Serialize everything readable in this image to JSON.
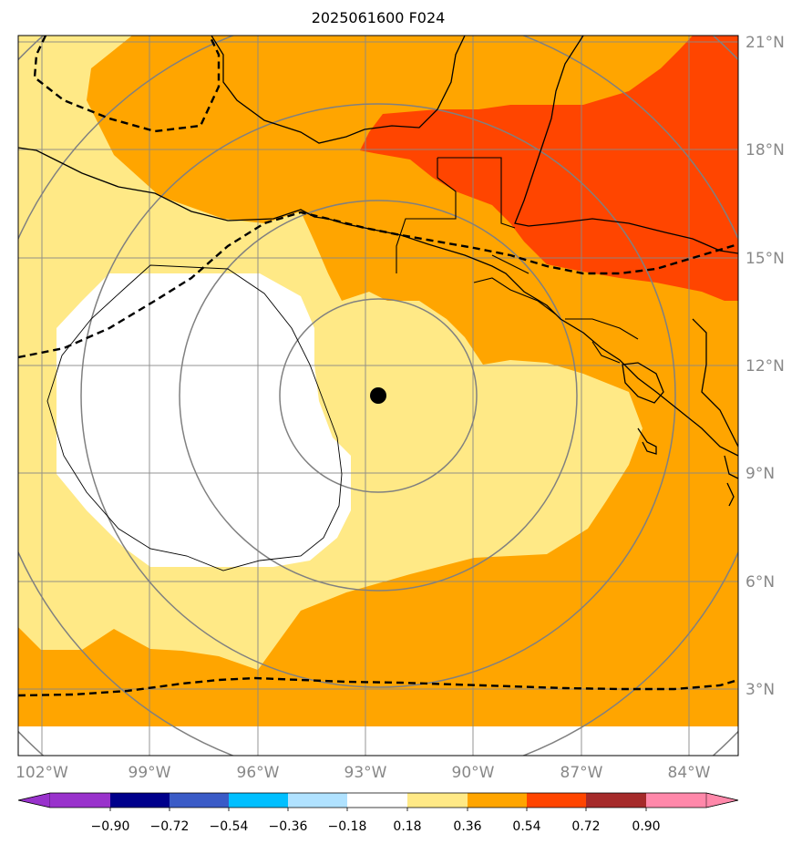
{
  "title": "2025061600 F024",
  "lat_labels": [
    "21°N",
    "18°N",
    "15°N",
    "12°N",
    "9°N",
    "6°N",
    "3°N"
  ],
  "lon_labels": [
    "102°W",
    "99°W",
    "96°W",
    "93°W",
    "90°W",
    "87°W",
    "84°W"
  ],
  "colorbar": {
    "ticks": [
      "−0.90",
      "−0.72",
      "−0.54",
      "−0.36",
      "−0.18",
      "0.18",
      "0.36",
      "0.54",
      "0.72",
      "0.90"
    ],
    "colors": [
      "#9932cc",
      "#00008b",
      "#3a5bc7",
      "#00bfff",
      "#b0e2ff",
      "#ffffff",
      "#ffe986",
      "#ffa500",
      "#ff4500",
      "#a52a2a",
      "#ff88aa"
    ]
  },
  "fill_colors": {
    "level_018_036": "#ffe986",
    "level_036_054": "#ffa500",
    "level_054_072": "#ff4500",
    "below_018": "#ffffff"
  },
  "marker": {
    "label": "storm center",
    "lat": 11.2,
    "lon": -92.7
  }
}
